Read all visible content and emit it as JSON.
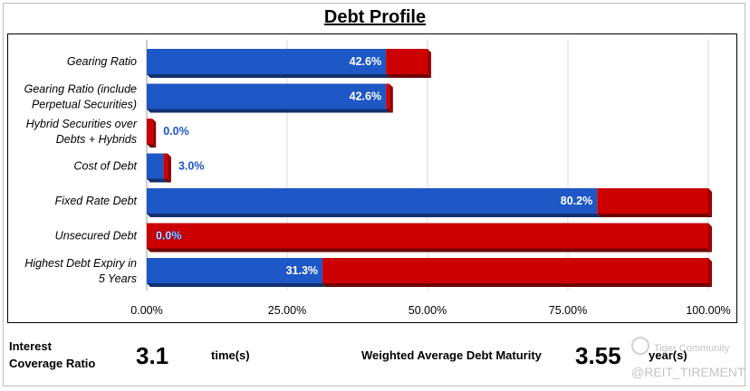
{
  "page": {
    "title": "Debt Profile"
  },
  "chart_data": {
    "type": "bar",
    "orientation": "horizontal",
    "stacked": true,
    "categories": [
      [
        "Gearing Ratio"
      ],
      [
        "Gearing Ratio (include",
        "Perpetual Securities)"
      ],
      [
        "Hybrid Securities over",
        "Debts + Hybrids"
      ],
      [
        "Cost of Debt"
      ],
      [
        "Fixed Rate Debt"
      ],
      [
        "Unsecured Debt"
      ],
      [
        "Highest Debt Expiry in",
        "5 Years"
      ]
    ],
    "series": [
      {
        "values": [
          42.6,
          42.6,
          0.0,
          3.0,
          80.2,
          0.0,
          31.3
        ],
        "color": "#1e57c6"
      },
      {
        "values": [
          7.4,
          0.6,
          1.0,
          0.7,
          19.8,
          100.0,
          68.7
        ],
        "color": "#cc0000"
      }
    ],
    "data_labels": [
      "42.6%",
      "42.6%",
      "0.0%",
      "3.0%",
      "80.2%",
      "0.0%",
      "31.3%"
    ],
    "x_ticks": [
      "0.00%",
      "25.00%",
      "50.00%",
      "75.00%",
      "100.00%"
    ],
    "xlim": [
      0,
      100
    ],
    "grid": true
  },
  "footer": {
    "interest_label_line1": "Interest",
    "interest_label_line2": "Coverage Ratio",
    "interest_value": "3.1",
    "interest_unit": "time(s)",
    "wadm_label": "Weighted Average Debt Maturity",
    "wadm_value": "3.55",
    "wadm_unit": "year(s)"
  },
  "watermark": {
    "line1": "Tiger Community",
    "line2": "@REIT_TIREMENT"
  }
}
